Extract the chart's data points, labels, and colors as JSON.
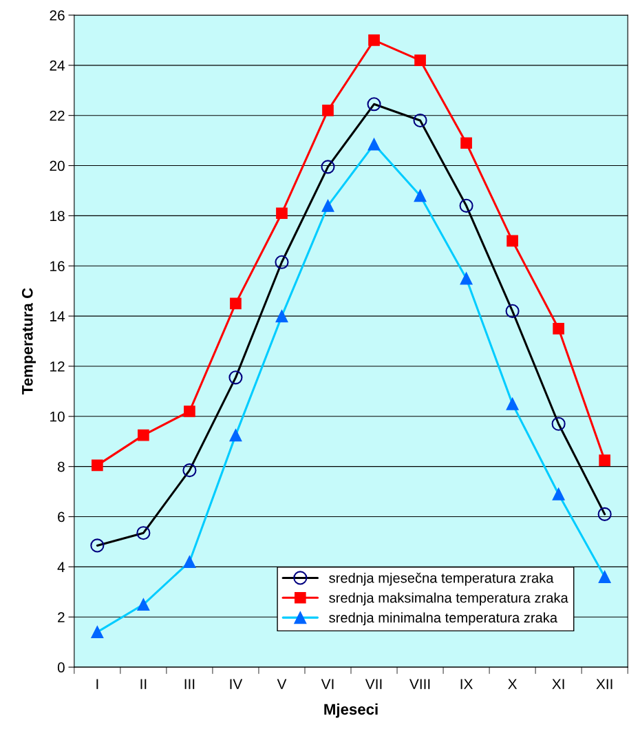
{
  "chart_data": {
    "type": "line",
    "xlabel": "Mjeseci",
    "ylabel": "Temperatura C",
    "categories": [
      "I",
      "II",
      "III",
      "IV",
      "V",
      "VI",
      "VII",
      "VIII",
      "IX",
      "X",
      "XI",
      "XII"
    ],
    "series": [
      {
        "name": "srednja mjesečna temperatura zraka",
        "color": "#000000",
        "marker": "circle",
        "values": [
          4.85,
          5.35,
          7.85,
          11.55,
          16.15,
          19.95,
          22.45,
          21.8,
          18.4,
          14.2,
          9.7,
          6.1
        ]
      },
      {
        "name": "srednja maksimalna temperatura zraka",
        "color": "#ff0000",
        "marker": "square",
        "values": [
          8.05,
          9.25,
          10.2,
          14.5,
          18.1,
          22.2,
          25.0,
          24.2,
          20.9,
          17.0,
          13.5,
          8.25
        ]
      },
      {
        "name": "srednja minimalna temperatura zraka",
        "color": "#00ccff",
        "marker": "triangle",
        "values": [
          1.4,
          2.5,
          4.2,
          9.25,
          14.0,
          18.4,
          20.85,
          18.8,
          15.5,
          10.5,
          6.9,
          3.6
        ]
      }
    ],
    "ylim": [
      0,
      26
    ],
    "yticks": [
      0,
      2,
      4,
      6,
      8,
      10,
      12,
      14,
      16,
      18,
      20,
      22,
      24,
      26
    ],
    "grid": "y",
    "legend": "bottom right",
    "line_style": "solid"
  }
}
